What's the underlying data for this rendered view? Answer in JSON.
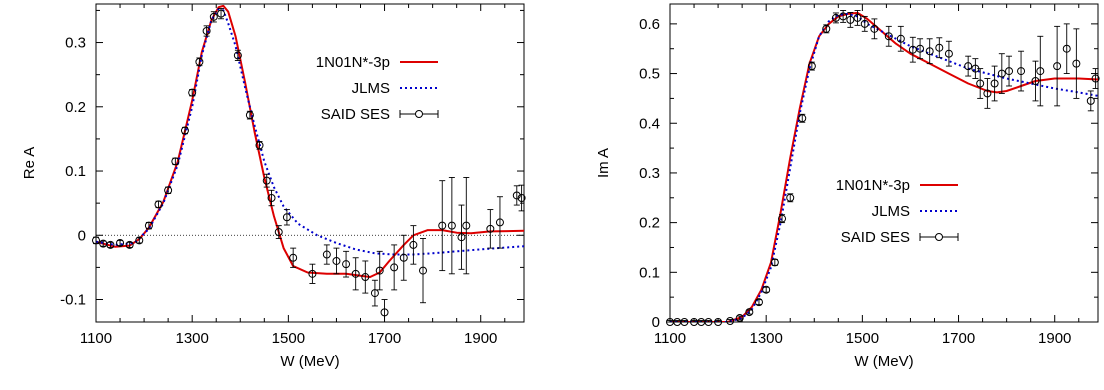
{
  "chart_data": [
    {
      "type": "line",
      "xlabel": "W (MeV)",
      "ylabel": "Re A",
      "xlim": [
        1100,
        1990
      ],
      "ylim": [
        -0.135,
        0.36
      ],
      "xticks": [
        1100,
        1300,
        1500,
        1700,
        1900
      ],
      "yticks": [
        -0.1,
        0,
        0.1,
        0.2,
        0.3
      ],
      "ytick_labels": [
        "-0.1",
        "0",
        "0.1",
        "0.2",
        "0.3"
      ],
      "zero_line": true,
      "legend_position": "top-right",
      "series": [
        {
          "name": "1N01N*-3p",
          "style": "solid",
          "color": "#dd0000",
          "points": [
            [
              1100,
              -0.01
            ],
            [
              1140,
              -0.018
            ],
            [
              1170,
              -0.016
            ],
            [
              1190,
              -0.006
            ],
            [
              1210,
              0.012
            ],
            [
              1240,
              0.052
            ],
            [
              1270,
              0.115
            ],
            [
              1300,
              0.21
            ],
            [
              1320,
              0.285
            ],
            [
              1340,
              0.335
            ],
            [
              1355,
              0.355
            ],
            [
              1365,
              0.357
            ],
            [
              1375,
              0.348
            ],
            [
              1390,
              0.31
            ],
            [
              1410,
              0.238
            ],
            [
              1430,
              0.16
            ],
            [
              1450,
              0.09
            ],
            [
              1470,
              0.03
            ],
            [
              1490,
              -0.02
            ],
            [
              1510,
              -0.048
            ],
            [
              1540,
              -0.058
            ],
            [
              1580,
              -0.06
            ],
            [
              1620,
              -0.06
            ],
            [
              1650,
              -0.063
            ],
            [
              1670,
              -0.065
            ],
            [
              1690,
              -0.058
            ],
            [
              1710,
              -0.04
            ],
            [
              1740,
              -0.015
            ],
            [
              1760,
              0
            ],
            [
              1790,
              0.008
            ],
            [
              1820,
              0.008
            ],
            [
              1850,
              0.004
            ],
            [
              1880,
              0.003
            ],
            [
              1920,
              0.006
            ],
            [
              1990,
              0.007
            ]
          ]
        },
        {
          "name": "JLMS",
          "style": "dotted",
          "color": "#0000cc",
          "points": [
            [
              1100,
              -0.01
            ],
            [
              1140,
              -0.015
            ],
            [
              1180,
              -0.012
            ],
            [
              1210,
              0.01
            ],
            [
              1240,
              0.05
            ],
            [
              1270,
              0.11
            ],
            [
              1300,
              0.2
            ],
            [
              1320,
              0.28
            ],
            [
              1340,
              0.335
            ],
            [
              1355,
              0.352
            ],
            [
              1365,
              0.35
            ],
            [
              1375,
              0.33
            ],
            [
              1390,
              0.295
            ],
            [
              1410,
              0.23
            ],
            [
              1430,
              0.17
            ],
            [
              1450,
              0.115
            ],
            [
              1470,
              0.075
            ],
            [
              1490,
              0.045
            ],
            [
              1520,
              0.018
            ],
            [
              1560,
              0
            ],
            [
              1600,
              -0.012
            ],
            [
              1640,
              -0.022
            ],
            [
              1680,
              -0.028
            ],
            [
              1720,
              -0.03
            ],
            [
              1760,
              -0.03
            ],
            [
              1800,
              -0.028
            ],
            [
              1850,
              -0.025
            ],
            [
              1900,
              -0.022
            ],
            [
              1990,
              -0.017
            ]
          ]
        },
        {
          "name": "SAID SES",
          "style": "markers",
          "points": [
            [
              1100,
              -0.008,
              0.005
            ],
            [
              1115,
              -0.013,
              0.004
            ],
            [
              1130,
              -0.015,
              0.004
            ],
            [
              1150,
              -0.012,
              0.004
            ],
            [
              1170,
              -0.015,
              0.004
            ],
            [
              1190,
              -0.008,
              0.004
            ],
            [
              1210,
              0.015,
              0.005
            ],
            [
              1230,
              0.048,
              0.005
            ],
            [
              1250,
              0.07,
              0.005
            ],
            [
              1265,
              0.115,
              0.005
            ],
            [
              1285,
              0.163,
              0.005
            ],
            [
              1300,
              0.222,
              0.005
            ],
            [
              1315,
              0.27,
              0.006
            ],
            [
              1330,
              0.318,
              0.008
            ],
            [
              1345,
              0.34,
              0.008
            ],
            [
              1360,
              0.345,
              0.008
            ],
            [
              1395,
              0.28,
              0.008
            ],
            [
              1420,
              0.187,
              0.006
            ],
            [
              1440,
              0.14,
              0.006
            ],
            [
              1455,
              0.085,
              0.01
            ],
            [
              1465,
              0.058,
              0.012
            ],
            [
              1480,
              0.005,
              0.01
            ],
            [
              1497,
              0.028,
              0.012
            ],
            [
              1510,
              -0.035,
              0.015
            ],
            [
              1550,
              -0.06,
              0.015
            ],
            [
              1580,
              -0.03,
              0.015
            ],
            [
              1600,
              -0.04,
              0.02
            ],
            [
              1620,
              -0.045,
              0.02
            ],
            [
              1640,
              -0.06,
              0.025
            ],
            [
              1660,
              -0.065,
              0.025
            ],
            [
              1680,
              -0.09,
              0.02
            ],
            [
              1700,
              -0.12,
              0.02
            ],
            [
              1690,
              -0.055,
              0.03
            ],
            [
              1720,
              -0.05,
              0.035
            ],
            [
              1740,
              -0.035,
              0.035
            ],
            [
              1760,
              -0.015,
              0.03
            ],
            [
              1780,
              -0.055,
              0.05
            ],
            [
              1820,
              0.015,
              0.07
            ],
            [
              1840,
              0.015,
              0.075
            ],
            [
              1860,
              -0.003,
              0.05
            ],
            [
              1870,
              0.015,
              0.075
            ],
            [
              1920,
              0.01,
              0.03
            ],
            [
              1940,
              0.02,
              0.04
            ],
            [
              1975,
              0.062,
              0.015
            ],
            [
              1985,
              0.058,
              0.02
            ]
          ]
        }
      ]
    },
    {
      "type": "line",
      "xlabel": "W (MeV)",
      "ylabel": "Im A",
      "xlim": [
        1100,
        1990
      ],
      "ylim": [
        0,
        0.64
      ],
      "xticks": [
        1100,
        1300,
        1500,
        1700,
        1900
      ],
      "yticks": [
        0,
        0.1,
        0.2,
        0.3,
        0.4,
        0.5,
        0.6
      ],
      "ytick_labels": [
        "0",
        "0.1",
        "0.2",
        "0.3",
        "0.4",
        "0.5",
        "0.6"
      ],
      "legend_position": "center-right",
      "series": [
        {
          "name": "1N01N*-3p",
          "style": "solid",
          "color": "#dd0000",
          "points": [
            [
              1100,
              0
            ],
            [
              1220,
              0
            ],
            [
              1250,
              0.01
            ],
            [
              1270,
              0.03
            ],
            [
              1290,
              0.065
            ],
            [
              1310,
              0.12
            ],
            [
              1330,
              0.22
            ],
            [
              1350,
              0.33
            ],
            [
              1370,
              0.43
            ],
            [
              1390,
              0.52
            ],
            [
              1410,
              0.575
            ],
            [
              1430,
              0.6
            ],
            [
              1450,
              0.615
            ],
            [
              1470,
              0.62
            ],
            [
              1490,
              0.622
            ],
            [
              1510,
              0.61
            ],
            [
              1540,
              0.585
            ],
            [
              1570,
              0.56
            ],
            [
              1600,
              0.54
            ],
            [
              1640,
              0.52
            ],
            [
              1680,
              0.5
            ],
            [
              1720,
              0.48
            ],
            [
              1760,
              0.465
            ],
            [
              1780,
              0.462
            ],
            [
              1800,
              0.465
            ],
            [
              1830,
              0.475
            ],
            [
              1860,
              0.485
            ],
            [
              1900,
              0.49
            ],
            [
              1950,
              0.49
            ],
            [
              1990,
              0.488
            ]
          ]
        },
        {
          "name": "JLMS",
          "style": "dotted",
          "color": "#0000cc",
          "points": [
            [
              1100,
              0
            ],
            [
              1220,
              0
            ],
            [
              1250,
              0.008
            ],
            [
              1270,
              0.025
            ],
            [
              1290,
              0.06
            ],
            [
              1310,
              0.11
            ],
            [
              1330,
              0.2
            ],
            [
              1350,
              0.31
            ],
            [
              1370,
              0.42
            ],
            [
              1390,
              0.51
            ],
            [
              1410,
              0.575
            ],
            [
              1430,
              0.605
            ],
            [
              1450,
              0.618
            ],
            [
              1470,
              0.62
            ],
            [
              1490,
              0.615
            ],
            [
              1510,
              0.6
            ],
            [
              1540,
              0.585
            ],
            [
              1570,
              0.57
            ],
            [
              1600,
              0.555
            ],
            [
              1640,
              0.54
            ],
            [
              1680,
              0.525
            ],
            [
              1720,
              0.51
            ],
            [
              1760,
              0.5
            ],
            [
              1800,
              0.49
            ],
            [
              1850,
              0.48
            ],
            [
              1900,
              0.47
            ],
            [
              1950,
              0.462
            ],
            [
              1990,
              0.455
            ]
          ]
        },
        {
          "name": "SAID SES",
          "style": "markers",
          "points": [
            [
              1100,
              0,
              0.003
            ],
            [
              1115,
              0,
              0.003
            ],
            [
              1130,
              0,
              0.003
            ],
            [
              1150,
              0,
              0.003
            ],
            [
              1165,
              0,
              0.003
            ],
            [
              1180,
              0,
              0.003
            ],
            [
              1200,
              0,
              0.003
            ],
            [
              1225,
              0.002,
              0.003
            ],
            [
              1245,
              0.008,
              0.004
            ],
            [
              1265,
              0.02,
              0.004
            ],
            [
              1285,
              0.04,
              0.005
            ],
            [
              1300,
              0.065,
              0.005
            ],
            [
              1318,
              0.12,
              0.006
            ],
            [
              1333,
              0.208,
              0.008
            ],
            [
              1350,
              0.25,
              0.008
            ],
            [
              1375,
              0.41,
              0.008
            ],
            [
              1395,
              0.515,
              0.008
            ],
            [
              1425,
              0.59,
              0.008
            ],
            [
              1445,
              0.612,
              0.01
            ],
            [
              1460,
              0.615,
              0.012
            ],
            [
              1475,
              0.608,
              0.015
            ],
            [
              1490,
              0.612,
              0.015
            ],
            [
              1505,
              0.6,
              0.015
            ],
            [
              1525,
              0.59,
              0.02
            ],
            [
              1555,
              0.575,
              0.02
            ],
            [
              1580,
              0.57,
              0.025
            ],
            [
              1605,
              0.548,
              0.025
            ],
            [
              1620,
              0.55,
              0.02
            ],
            [
              1640,
              0.545,
              0.025
            ],
            [
              1660,
              0.552,
              0.02
            ],
            [
              1680,
              0.54,
              0.025
            ],
            [
              1720,
              0.515,
              0.02
            ],
            [
              1735,
              0.51,
              0.02
            ],
            [
              1745,
              0.48,
              0.03
            ],
            [
              1760,
              0.46,
              0.03
            ],
            [
              1775,
              0.48,
              0.035
            ],
            [
              1790,
              0.5,
              0.04
            ],
            [
              1805,
              0.505,
              0.03
            ],
            [
              1830,
              0.505,
              0.04
            ],
            [
              1860,
              0.485,
              0.04
            ],
            [
              1870,
              0.505,
              0.07
            ],
            [
              1905,
              0.515,
              0.08
            ],
            [
              1925,
              0.55,
              0.05
            ],
            [
              1945,
              0.52,
              0.07
            ],
            [
              1975,
              0.445,
              0.02
            ],
            [
              1985,
              0.49,
              0.02
            ]
          ]
        }
      ]
    }
  ]
}
